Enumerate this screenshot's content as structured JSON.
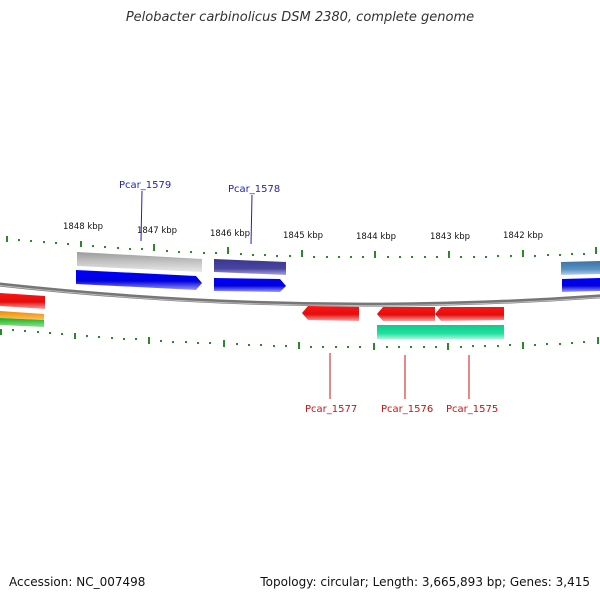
{
  "title": "Pelobacter carbinolicus DSM 2380, complete genome",
  "footer": {
    "accession": "Accession: NC_007498",
    "summary": "Topology: circular; Length: 3,665,893 bp; Genes: 3,415"
  },
  "colors": {
    "backbone": "#777777",
    "tick": "#2a8a2a",
    "cds_forward": "#0000f0",
    "cds_reverse": "#ef0d0d",
    "label_forward": "#1f1fc8",
    "label_reverse": "#d01010",
    "teal": "#1fd99a",
    "gray": "#b4b4b4",
    "purple": "#443f99",
    "steelblue": "#4a82b3"
  },
  "scale_labels": [
    "1848 kbp",
    "1847 kbp",
    "1846 kbp",
    "1845 kbp",
    "1844 kbp",
    "1843 kbp",
    "1842 kbp"
  ],
  "gene_labels": [
    {
      "name": "Pcar_1579",
      "strand": "forward"
    },
    {
      "name": "Pcar_1578",
      "strand": "forward"
    },
    {
      "name": "Pcar_1577",
      "strand": "reverse"
    },
    {
      "name": "Pcar_1576",
      "strand": "reverse"
    },
    {
      "name": "Pcar_1575",
      "strand": "reverse"
    }
  ]
}
